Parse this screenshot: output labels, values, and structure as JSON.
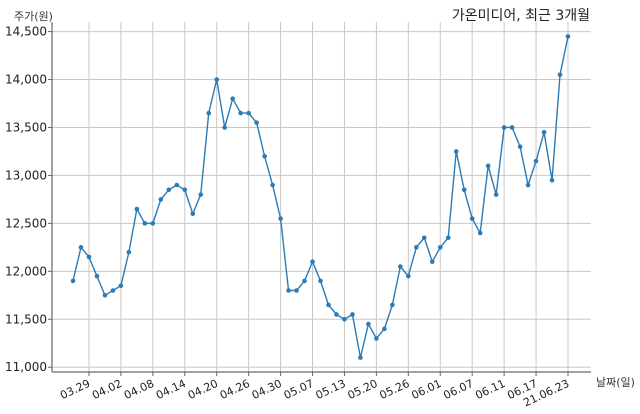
{
  "chart_data": {
    "type": "line",
    "title": "가온미디어, 최근 3개월",
    "ylabel": "주가(원)",
    "xlabel": "날짜(일)",
    "ylim": [
      10950,
      14600
    ],
    "grid": true,
    "y_ticks": [
      11000,
      11500,
      12000,
      12500,
      13000,
      13500,
      14000,
      14500
    ],
    "y_tick_labels": [
      "11,000",
      "11,500",
      "12,000",
      "12,500",
      "13,000",
      "13,500",
      "14,000",
      "14,500"
    ],
    "x_tick_labels": [
      "03.29",
      "04.02",
      "04.08",
      "04.14",
      "04.20",
      "04.26",
      "04.30",
      "05.07",
      "05.13",
      "05.20",
      "05.26",
      "06.01",
      "06.07",
      "06.11",
      "06.17",
      "21.06.23"
    ],
    "x_tick_indices": [
      2,
      6,
      10,
      14,
      18,
      22,
      26,
      30,
      34,
      38,
      42,
      46,
      50,
      54,
      58,
      62
    ],
    "series": [
      {
        "color": "#2b7bb5",
        "values": [
          11900,
          12250,
          12150,
          11950,
          11750,
          11800,
          11850,
          12200,
          12650,
          12500,
          12500,
          12750,
          12850,
          12900,
          12850,
          12600,
          12800,
          13650,
          14000,
          13500,
          13800,
          13650,
          13650,
          13550,
          13200,
          12900,
          12550,
          11800,
          11800,
          11900,
          12100,
          11900,
          11650,
          11550,
          11500,
          11550,
          11100,
          11450,
          11300,
          11400,
          11650,
          12050,
          11950,
          12250,
          12350,
          12100,
          12250,
          12350,
          13250,
          12850,
          12550,
          12400,
          13100,
          12800,
          13500,
          13500,
          13300,
          12900,
          13150,
          13450,
          12950,
          14050,
          14450
        ]
      }
    ]
  }
}
